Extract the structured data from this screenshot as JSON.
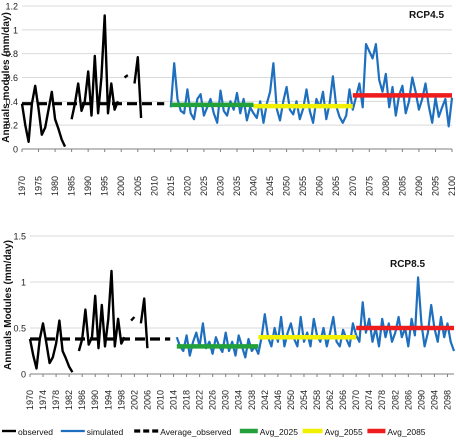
{
  "colors": {
    "observed": "#000000",
    "simulated": "#1f6fbf",
    "avg_2025": "#22a03a",
    "avg_2055": "#f0f000",
    "avg_2085": "#ee1c1c",
    "grid": "#d9d9d9",
    "axis": "#7f7f7f"
  },
  "chart_data": [
    {
      "type": "line",
      "annotation": "RCP4.5",
      "ylabel": "Annuals modules (mm/day)",
      "ylim": [
        0,
        1.2
      ],
      "yticks": [
        0,
        0.2,
        0.4,
        0.6,
        0.8,
        1,
        1.2
      ],
      "ytick_labels": [
        "0",
        "0.2",
        "0.4",
        "0.6",
        "0.8",
        "1",
        "1.2"
      ],
      "xlim": [
        1970,
        2100
      ],
      "xticks": [
        1970,
        1975,
        1980,
        1985,
        1990,
        1995,
        2000,
        2005,
        2010,
        2015,
        2020,
        2025,
        2030,
        2035,
        2040,
        2045,
        2050,
        2055,
        2060,
        2065,
        2070,
        2075,
        2080,
        2085,
        2090,
        2095,
        2100
      ],
      "grid": "horizontal",
      "series": [
        {
          "name": "observed",
          "style": "solid",
          "segments": [
            {
              "x": [
                1970,
                1971,
                1972,
                1973,
                1974,
                1975,
                1976,
                1977,
                1978,
                1979,
                1980,
                1981,
                1982,
                1983
              ],
              "y": [
                0.38,
                0.2,
                0.06,
                0.38,
                0.53,
                0.34,
                0.12,
                0.18,
                0.33,
                0.48,
                0.25,
                0.17,
                0.08,
                0.02
              ]
            },
            {
              "x": [
                1985,
                1986,
                1987,
                1988,
                1989,
                1990,
                1991,
                1992,
                1993,
                1994,
                1995,
                1996,
                1997,
                1998,
                1999
              ],
              "y": [
                0.25,
                0.38,
                0.55,
                0.32,
                0.4,
                0.65,
                0.28,
                0.78,
                0.3,
                0.6,
                1.12,
                0.3,
                0.55,
                0.33,
                0.4
              ]
            },
            {
              "x": [
                2001,
                2002
              ],
              "y": [
                0.6,
                0.62
              ]
            },
            {
              "x": [
                2004,
                2005,
                2006
              ],
              "y": [
                0.55,
                0.77,
                0.26
              ]
            }
          ]
        },
        {
          "name": "simulated",
          "style": "solid",
          "x": [
            2015,
            2016,
            2017,
            2018,
            2019,
            2020,
            2021,
            2022,
            2023,
            2024,
            2025,
            2026,
            2027,
            2028,
            2029,
            2030,
            2031,
            2032,
            2033,
            2034,
            2035,
            2036,
            2037,
            2038,
            2039,
            2040,
            2041,
            2042,
            2043,
            2044,
            2045,
            2046,
            2047,
            2048,
            2049,
            2050,
            2051,
            2052,
            2053,
            2054,
            2055,
            2056,
            2057,
            2058,
            2059,
            2060,
            2061,
            2062,
            2063,
            2064,
            2065,
            2066,
            2067,
            2068,
            2069,
            2070,
            2071,
            2072,
            2073,
            2074,
            2075,
            2076,
            2077,
            2078,
            2079,
            2080,
            2081,
            2082,
            2083,
            2084,
            2085,
            2086,
            2087,
            2088,
            2089,
            2090,
            2091,
            2092,
            2093,
            2094,
            2095,
            2096,
            2097,
            2098,
            2099,
            2100
          ],
          "y": [
            0.35,
            0.72,
            0.42,
            0.32,
            0.3,
            0.5,
            0.3,
            0.25,
            0.42,
            0.46,
            0.28,
            0.35,
            0.42,
            0.3,
            0.22,
            0.49,
            0.32,
            0.28,
            0.4,
            0.33,
            0.47,
            0.3,
            0.42,
            0.24,
            0.35,
            0.3,
            0.26,
            0.4,
            0.22,
            0.38,
            0.48,
            0.72,
            0.34,
            0.24,
            0.4,
            0.52,
            0.33,
            0.29,
            0.4,
            0.25,
            0.34,
            0.5,
            0.32,
            0.22,
            0.42,
            0.35,
            0.48,
            0.25,
            0.38,
            0.61,
            0.36,
            0.27,
            0.22,
            0.28,
            0.5,
            0.33,
            0.44,
            0.55,
            0.35,
            0.88,
            0.82,
            0.76,
            0.88,
            0.58,
            0.48,
            0.63,
            0.35,
            0.52,
            0.28,
            0.45,
            0.53,
            0.3,
            0.4,
            0.6,
            0.48,
            0.33,
            0.42,
            0.55,
            0.36,
            0.22,
            0.43,
            0.27,
            0.35,
            0.42,
            0.19,
            0.43
          ]
        },
        {
          "name": "Average_observed",
          "style": "dashed",
          "x": [
            1970,
            2013
          ],
          "y": [
            0.38,
            0.38
          ]
        },
        {
          "name": "Avg_2025",
          "style": "thick",
          "x": [
            2015,
            2040
          ],
          "y": [
            0.37,
            0.37
          ]
        },
        {
          "name": "Avg_2055",
          "style": "thick",
          "x": [
            2040,
            2070
          ],
          "y": [
            0.36,
            0.36
          ]
        },
        {
          "name": "Avg_2085",
          "style": "thick",
          "x": [
            2070,
            2100
          ],
          "y": [
            0.45,
            0.45
          ]
        }
      ]
    },
    {
      "type": "line",
      "annotation": "RCP8.5",
      "ylabel": "Annuals Modules (mm/day)",
      "ylim": [
        0,
        1.5
      ],
      "yticks": [
        0,
        0.5,
        1,
        1.5
      ],
      "ytick_labels": [
        "0",
        "0.5",
        "1",
        "1.5"
      ],
      "xlim": [
        1970,
        2100
      ],
      "xticks": [
        1970,
        1974,
        1978,
        1982,
        1986,
        1990,
        1994,
        1998,
        2002,
        2006,
        2010,
        2014,
        2018,
        2022,
        2026,
        2030,
        2034,
        2038,
        2042,
        2046,
        2050,
        2054,
        2058,
        2062,
        2066,
        2070,
        2074,
        2078,
        2082,
        2086,
        2090,
        2094,
        2098
      ],
      "grid": "horizontal",
      "series": [
        {
          "name": "observed",
          "style": "solid",
          "segments": [
            {
              "x": [
                1970,
                1971,
                1972,
                1973,
                1974,
                1975,
                1976,
                1977,
                1978,
                1979,
                1980,
                1981,
                1982,
                1983
              ],
              "y": [
                0.38,
                0.2,
                0.06,
                0.38,
                0.55,
                0.34,
                0.12,
                0.18,
                0.33,
                0.58,
                0.25,
                0.17,
                0.08,
                0.02
              ]
            },
            {
              "x": [
                1985,
                1986,
                1987,
                1988,
                1989,
                1990,
                1991,
                1992,
                1993,
                1994,
                1995,
                1996,
                1997,
                1998,
                1999
              ],
              "y": [
                0.25,
                0.38,
                0.7,
                0.32,
                0.4,
                0.85,
                0.28,
                0.75,
                0.3,
                0.6,
                1.12,
                0.3,
                0.6,
                0.33,
                0.4
              ]
            },
            {
              "x": [
                2001,
                2002
              ],
              "y": [
                0.58,
                0.62
              ]
            },
            {
              "x": [
                2004,
                2005,
                2006
              ],
              "y": [
                0.55,
                0.82,
                0.28
              ]
            }
          ]
        },
        {
          "name": "simulated",
          "style": "solid",
          "x": [
            2015,
            2016,
            2017,
            2018,
            2019,
            2020,
            2021,
            2022,
            2023,
            2024,
            2025,
            2026,
            2027,
            2028,
            2029,
            2030,
            2031,
            2032,
            2033,
            2034,
            2035,
            2036,
            2037,
            2038,
            2039,
            2040,
            2041,
            2042,
            2043,
            2044,
            2045,
            2046,
            2047,
            2048,
            2049,
            2050,
            2051,
            2052,
            2053,
            2054,
            2055,
            2056,
            2057,
            2058,
            2059,
            2060,
            2061,
            2062,
            2063,
            2064,
            2065,
            2066,
            2067,
            2068,
            2069,
            2070,
            2071,
            2072,
            2073,
            2074,
            2075,
            2076,
            2077,
            2078,
            2079,
            2080,
            2081,
            2082,
            2083,
            2084,
            2085,
            2086,
            2087,
            2088,
            2089,
            2090,
            2091,
            2092,
            2093,
            2094,
            2095,
            2096,
            2097,
            2098,
            2099,
            2100
          ],
          "y": [
            0.4,
            0.3,
            0.25,
            0.42,
            0.2,
            0.35,
            0.45,
            0.3,
            0.55,
            0.28,
            0.35,
            0.22,
            0.4,
            0.3,
            0.24,
            0.45,
            0.25,
            0.35,
            0.2,
            0.42,
            0.3,
            0.18,
            0.38,
            0.25,
            0.3,
            0.22,
            0.4,
            0.65,
            0.4,
            0.3,
            0.5,
            0.35,
            0.62,
            0.3,
            0.45,
            0.55,
            0.38,
            0.3,
            0.62,
            0.35,
            0.45,
            0.3,
            0.6,
            0.42,
            0.35,
            0.5,
            0.3,
            0.45,
            0.62,
            0.35,
            0.3,
            0.48,
            0.38,
            0.3,
            0.55,
            0.42,
            0.35,
            0.78,
            0.45,
            0.6,
            0.35,
            0.5,
            0.3,
            0.6,
            0.4,
            0.55,
            0.35,
            0.45,
            0.62,
            0.4,
            0.5,
            0.3,
            0.6,
            0.42,
            1.05,
            0.55,
            0.3,
            0.45,
            0.75,
            0.5,
            0.35,
            0.62,
            0.4,
            0.55,
            0.35,
            0.25
          ]
        },
        {
          "name": "Average_observed",
          "style": "dashed",
          "x": [
            1970,
            2013
          ],
          "y": [
            0.38,
            0.38
          ]
        },
        {
          "name": "Avg_2025",
          "style": "thick",
          "x": [
            2015,
            2040
          ],
          "y": [
            0.3,
            0.3
          ]
        },
        {
          "name": "Avg_2055",
          "style": "thick",
          "x": [
            2040,
            2070
          ],
          "y": [
            0.4,
            0.4
          ]
        },
        {
          "name": "Avg_2085",
          "style": "thick",
          "x": [
            2070,
            2100
          ],
          "y": [
            0.5,
            0.5
          ]
        }
      ]
    }
  ],
  "legend": {
    "placement": "bottom",
    "entries": [
      {
        "label": "observed",
        "style": "solid",
        "color": "#000000"
      },
      {
        "label": "simulated",
        "style": "solid",
        "color": "#1f6fbf"
      },
      {
        "label": "Average_observed",
        "style": "dashed",
        "color": "#000000"
      },
      {
        "label": "Avg_2025",
        "style": "thick",
        "color": "#22a03a"
      },
      {
        "label": "Avg_2055",
        "style": "thick",
        "color": "#f0f000"
      },
      {
        "label": "Avg_2085",
        "style": "thick",
        "color": "#ee1c1c"
      }
    ]
  }
}
